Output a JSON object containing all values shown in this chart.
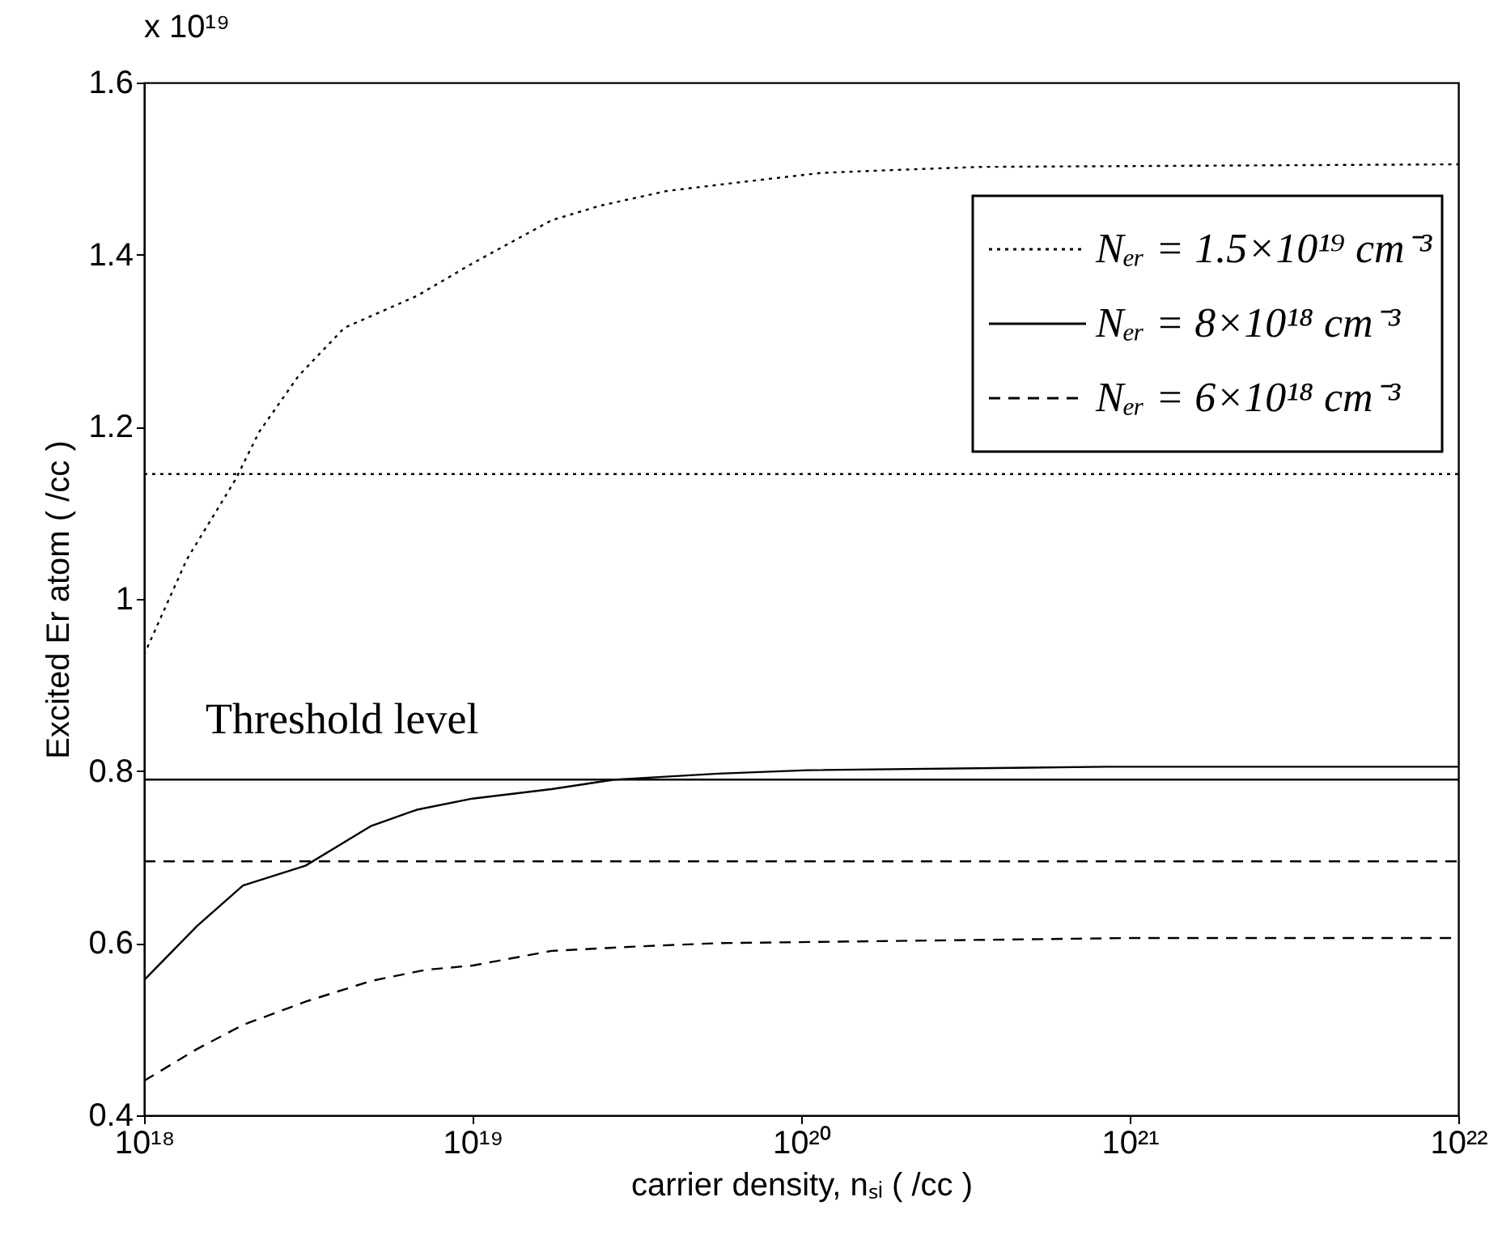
{
  "chart_data": {
    "type": "line",
    "xlabel": "carrier density, nₛᵢ ( /cc )",
    "ylabel": "Excited Er atom ( /cc )",
    "log": "x",
    "xlim": [
      1e+18,
      1e+22
    ],
    "xticks": [
      {
        "value": 1e+18,
        "label": "10¹⁸"
      },
      {
        "value": 1e+19,
        "label": "10¹⁹"
      },
      {
        "value": 1e+20,
        "label": "10²⁰"
      },
      {
        "value": 1e+21,
        "label": "10²¹"
      },
      {
        "value": 1e+22,
        "label": "10²²"
      }
    ],
    "ylim": [
      0.4,
      1.6
    ],
    "yticks": [
      0.4,
      0.6,
      0.8,
      1,
      1.2,
      1.4,
      1.6
    ],
    "grid": false,
    "legend": "top right",
    "series": [
      {
        "name": "Nₑᵣ = 1.5×10¹⁹ cm⁻³",
        "color": "#000000",
        "line_style": "dotted",
        "x": [
          1e+18,
          1.35e+18,
          1.9e+18,
          2.24e+18,
          2.95e+18,
          4.07e+18,
          6.76e+18,
          1e+19,
          1.74e+19,
          2.45e+19,
          3.9e+19,
          6.8e+19,
          1.15e+20,
          1.8e+20,
          3.5e+20,
          1e+22
        ],
        "values": [
          0.935,
          1.046,
          1.139,
          1.194,
          1.259,
          1.315,
          1.352,
          1.39,
          1.44,
          1.457,
          1.474,
          1.485,
          1.495,
          1.498,
          1.502,
          1.505
        ]
      },
      {
        "name": "Nₑᵣ = 8×10¹⁸ cm⁻³",
        "color": "#000000",
        "line_style": "solid",
        "x": [
          1e+18,
          1.45e+18,
          2e+18,
          3.1e+18,
          4.9e+18,
          6.76e+18,
          1e+19,
          1.74e+19,
          2.7e+19,
          5.6e+19,
          1.05e+20,
          8.5e+20,
          1e+22
        ],
        "values": [
          0.557,
          0.62,
          0.667,
          0.69,
          0.736,
          0.755,
          0.768,
          0.779,
          0.79,
          0.797,
          0.801,
          0.805,
          0.805
        ]
      },
      {
        "name": "Nₑᵣ = 6×10¹⁸ cm⁻³",
        "color": "#000000",
        "line_style": "dashed",
        "x": [
          1e+18,
          1.45e+18,
          2e+18,
          3.1e+18,
          4.9e+18,
          7.2e+18,
          1e+19,
          1.74e+19,
          3.1e+19,
          5.6e+19,
          1.02e+21,
          1e+22
        ],
        "values": [
          0.44,
          0.477,
          0.505,
          0.532,
          0.556,
          0.569,
          0.574,
          0.591,
          0.596,
          0.6,
          0.606,
          0.606
        ]
      }
    ],
    "ref_lines": [
      {
        "axis": "y",
        "value": 1.145,
        "color": "#000000",
        "line_style": "dotted"
      },
      {
        "axis": "y",
        "value": 0.79,
        "color": "#000000",
        "line_style": "solid"
      },
      {
        "axis": "y",
        "value": 0.695,
        "color": "#000000",
        "line_style": "dashed"
      }
    ],
    "annotations": [
      "x 10¹⁹",
      "Threshold level"
    ]
  }
}
